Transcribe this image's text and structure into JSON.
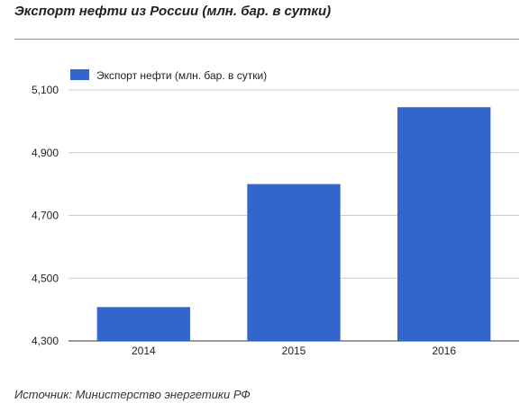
{
  "page": {
    "title": "Экспорт нефти из России (млн. бар. в сутки)",
    "source": "Источник: Министерство энергетики РФ"
  },
  "chart_data": {
    "type": "bar",
    "categories": [
      "2014",
      "2015",
      "2016"
    ],
    "series": [
      {
        "name": "Экспорт нефти (млн. бар. в сутки)",
        "values": [
          4408,
          4800,
          5045
        ]
      }
    ],
    "yticks": [
      "4,300",
      "4,500",
      "4,700",
      "4,900",
      "5,100"
    ],
    "ytick_values": [
      4300,
      4500,
      4700,
      4900,
      5100
    ],
    "ylim": [
      4300,
      5100
    ],
    "grid": true,
    "legend": "top-left",
    "colors": {
      "bar": "#3366cc",
      "grid": "#cccccc",
      "axis": "#333333",
      "label": "#222222"
    }
  }
}
